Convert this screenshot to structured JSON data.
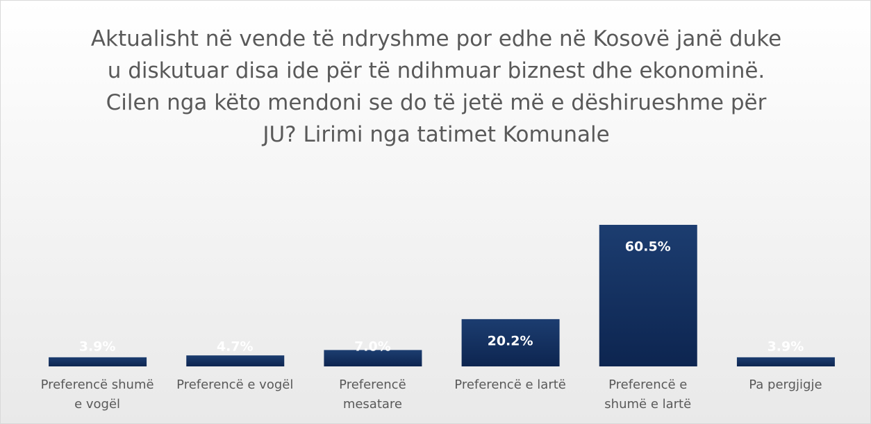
{
  "chart_data": {
    "type": "bar",
    "title": "Aktualisht në vende të ndryshme por edhe në Kosovë janë duke u diskutuar disa ide për të ndihmuar biznest dhe ekonominë. Cilen nga këto mendoni se do të jetë më e dëshirueshme për JU? Lirimi nga tatimet Komunale",
    "categories": [
      "Preferencë shumë e vogël",
      "Preferencë e vogël",
      "Preferencë mesatare",
      "Preferencë e lartë",
      "Preferencë e shumë e lartë",
      "Pa pergjigje"
    ],
    "values": [
      3.9,
      4.7,
      7.0,
      20.2,
      60.5,
      3.9
    ],
    "value_labels": [
      "3.9%",
      "4.7%",
      "7.0%",
      "20.2%",
      "60.5%",
      "3.9%"
    ],
    "color": "#13305e"
  }
}
